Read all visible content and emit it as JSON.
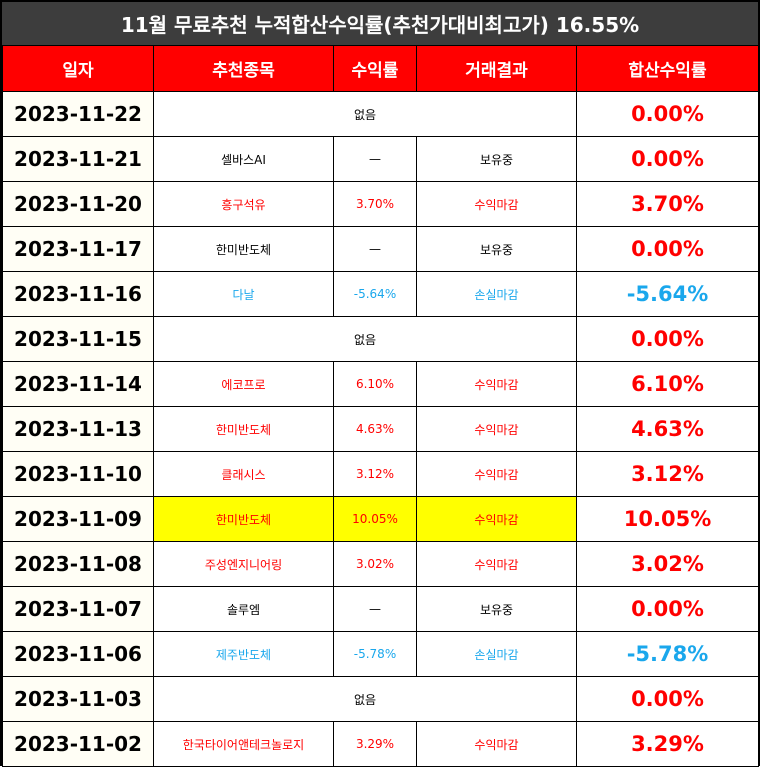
{
  "title": "11월 무료추천 누적합산수익률(추천가대비최고가) 16.55%",
  "headers": [
    "일자",
    "추천종목",
    "수익률",
    "거래결과",
    "합산수익률"
  ],
  "colors": {
    "red": "#ff0000",
    "blue": "#1aa7ec",
    "black": "#000000",
    "highlight": "#ffff00",
    "header_bg": "#ff0000",
    "title_bg": "#3d3d3d"
  },
  "rows": [
    {
      "date": "2023-11-22",
      "stock": "없음",
      "yield": "",
      "result": "",
      "cumulative": "0.00%",
      "color": "black",
      "rate_color": "red",
      "merged": true,
      "highlight": false
    },
    {
      "date": "2023-11-21",
      "stock": "셀바스AI",
      "yield": "—",
      "result": "보유중",
      "cumulative": "0.00%",
      "color": "black",
      "rate_color": "red",
      "merged": false,
      "highlight": false
    },
    {
      "date": "2023-11-20",
      "stock": "흥구석유",
      "yield": "3.70%",
      "result": "수익마감",
      "cumulative": "3.70%",
      "color": "red",
      "rate_color": "red",
      "merged": false,
      "highlight": false
    },
    {
      "date": "2023-11-17",
      "stock": "한미반도체",
      "yield": "—",
      "result": "보유중",
      "cumulative": "0.00%",
      "color": "black",
      "rate_color": "red",
      "merged": false,
      "highlight": false
    },
    {
      "date": "2023-11-16",
      "stock": "다날",
      "yield": "-5.64%",
      "result": "손실마감",
      "cumulative": "-5.64%",
      "color": "blue",
      "rate_color": "blue",
      "merged": false,
      "highlight": false
    },
    {
      "date": "2023-11-15",
      "stock": "없음",
      "yield": "",
      "result": "",
      "cumulative": "0.00%",
      "color": "black",
      "rate_color": "red",
      "merged": true,
      "highlight": false
    },
    {
      "date": "2023-11-14",
      "stock": "에코프로",
      "yield": "6.10%",
      "result": "수익마감",
      "cumulative": "6.10%",
      "color": "red",
      "rate_color": "red",
      "merged": false,
      "highlight": false
    },
    {
      "date": "2023-11-13",
      "stock": "한미반도체",
      "yield": "4.63%",
      "result": "수익마감",
      "cumulative": "4.63%",
      "color": "red",
      "rate_color": "red",
      "merged": false,
      "highlight": false
    },
    {
      "date": "2023-11-10",
      "stock": "클래시스",
      "yield": "3.12%",
      "result": "수익마감",
      "cumulative": "3.12%",
      "color": "red",
      "rate_color": "red",
      "merged": false,
      "highlight": false
    },
    {
      "date": "2023-11-09",
      "stock": "한미반도체",
      "yield": "10.05%",
      "result": "수익마감",
      "cumulative": "10.05%",
      "color": "red",
      "rate_color": "red",
      "merged": false,
      "highlight": true
    },
    {
      "date": "2023-11-08",
      "stock": "주성엔지니어링",
      "yield": "3.02%",
      "result": "수익마감",
      "cumulative": "3.02%",
      "color": "red",
      "rate_color": "red",
      "merged": false,
      "highlight": false
    },
    {
      "date": "2023-11-07",
      "stock": "솔루엠",
      "yield": "—",
      "result": "보유중",
      "cumulative": "0.00%",
      "color": "black",
      "rate_color": "red",
      "merged": false,
      "highlight": false
    },
    {
      "date": "2023-11-06",
      "stock": "제주반도체",
      "yield": "-5.78%",
      "result": "손실마감",
      "cumulative": "-5.78%",
      "color": "blue",
      "rate_color": "blue",
      "merged": false,
      "highlight": false
    },
    {
      "date": "2023-11-03",
      "stock": "없음",
      "yield": "",
      "result": "",
      "cumulative": "0.00%",
      "color": "black",
      "rate_color": "red",
      "merged": true,
      "highlight": false
    },
    {
      "date": "2023-11-02",
      "stock": "한국타이어앤테크놀로지",
      "yield": "3.29%",
      "result": "수익마감",
      "cumulative": "3.29%",
      "color": "red",
      "rate_color": "red",
      "merged": false,
      "highlight": false
    }
  ]
}
